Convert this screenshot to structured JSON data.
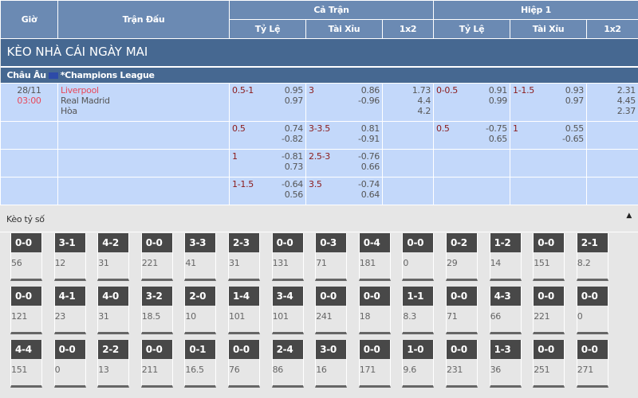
{
  "header": {
    "time": "Giờ",
    "match": "Trận Đấu",
    "full": "Cả Trận",
    "half": "Hiệp 1",
    "hdp": "Tỷ Lệ",
    "ou": "Tài Xỉu",
    "x12": "1x2"
  },
  "banner": "KÈO NHÀ CÁI NGÀY MAI",
  "league": {
    "region": "Châu Âu",
    "name": "*Champions League",
    "flag_color": "#2d4ba8"
  },
  "match": {
    "date": "28/11",
    "time": "03:00",
    "home": "Liverpool",
    "away": "Real Madrid",
    "draw": "Hòa"
  },
  "rows": [
    {
      "ft_hdp": "0.5-1",
      "ft_hdp_o": [
        "0.95",
        "0.97"
      ],
      "ft_ou": "3",
      "ft_ou_o": [
        "0.86",
        "-0.96"
      ],
      "ft_1x2": [
        "1.73",
        "4.4",
        "4.2"
      ],
      "h1_hdp": "0-0.5",
      "h1_hdp_o": [
        "0.91",
        "0.99"
      ],
      "h1_ou": "1-1.5",
      "h1_ou_o": [
        "0.93",
        "0.97"
      ],
      "h1_1x2": [
        "2.31",
        "4.45",
        "2.37"
      ]
    },
    {
      "ft_hdp": "0.5",
      "ft_hdp_o": [
        "0.74",
        "-0.82"
      ],
      "ft_ou": "3-3.5",
      "ft_ou_o": [
        "0.81",
        "-0.91"
      ],
      "ft_1x2": [],
      "h1_hdp": "0.5",
      "h1_hdp_o": [
        "-0.75",
        "0.65"
      ],
      "h1_ou": "1",
      "h1_ou_o": [
        "0.55",
        "-0.65"
      ],
      "h1_1x2": []
    },
    {
      "ft_hdp": "1",
      "ft_hdp_o": [
        "-0.81",
        "0.73"
      ],
      "ft_ou": "2.5-3",
      "ft_ou_o": [
        "-0.76",
        "0.66"
      ],
      "ft_1x2": [],
      "h1_hdp": "",
      "h1_hdp_o": [],
      "h1_ou": "",
      "h1_ou_o": [],
      "h1_1x2": []
    },
    {
      "ft_hdp": "1-1.5",
      "ft_hdp_o": [
        "-0.64",
        "0.56"
      ],
      "ft_ou": "3.5",
      "ft_ou_o": [
        "-0.74",
        "0.64"
      ],
      "ft_1x2": [],
      "h1_hdp": "",
      "h1_hdp_o": [],
      "h1_ou": "",
      "h1_ou_o": [],
      "h1_1x2": []
    }
  ],
  "score_section": {
    "title": "Kèo tỷ số",
    "collapse_icon": "caret-up-icon"
  },
  "scores": [
    [
      [
        "0-0",
        "56"
      ],
      [
        "3-1",
        "12"
      ],
      [
        "4-2",
        "31"
      ],
      [
        "0-0",
        "221"
      ],
      [
        "3-3",
        "41"
      ],
      [
        "2-3",
        "31"
      ],
      [
        "0-0",
        "131"
      ],
      [
        "0-3",
        "71"
      ],
      [
        "0-4",
        "181"
      ],
      [
        "0-0",
        "0"
      ],
      [
        "0-2",
        "29"
      ],
      [
        "1-2",
        "14"
      ],
      [
        "0-0",
        "151"
      ],
      [
        "2-1",
        "8.2"
      ]
    ],
    [
      [
        "0-0",
        "121"
      ],
      [
        "4-1",
        "23"
      ],
      [
        "4-0",
        "31"
      ],
      [
        "3-2",
        "18.5"
      ],
      [
        "2-0",
        "10"
      ],
      [
        "1-4",
        "101"
      ],
      [
        "3-4",
        "101"
      ],
      [
        "0-0",
        "241"
      ],
      [
        "0-0",
        "18"
      ],
      [
        "1-1",
        "8.3"
      ],
      [
        "0-0",
        "71"
      ],
      [
        "4-3",
        "66"
      ],
      [
        "0-0",
        "221"
      ],
      [
        "0-0",
        "0"
      ]
    ],
    [
      [
        "4-4",
        "151"
      ],
      [
        "0-0",
        "0"
      ],
      [
        "2-2",
        "13"
      ],
      [
        "0-0",
        "211"
      ],
      [
        "0-1",
        "16.5"
      ],
      [
        "0-0",
        "76"
      ],
      [
        "2-4",
        "86"
      ],
      [
        "3-0",
        "16"
      ],
      [
        "0-0",
        "171"
      ],
      [
        "1-0",
        "9.6"
      ],
      [
        "0-0",
        "231"
      ],
      [
        "1-3",
        "36"
      ],
      [
        "0-0",
        "251"
      ],
      [
        "0-0",
        "271"
      ]
    ]
  ]
}
